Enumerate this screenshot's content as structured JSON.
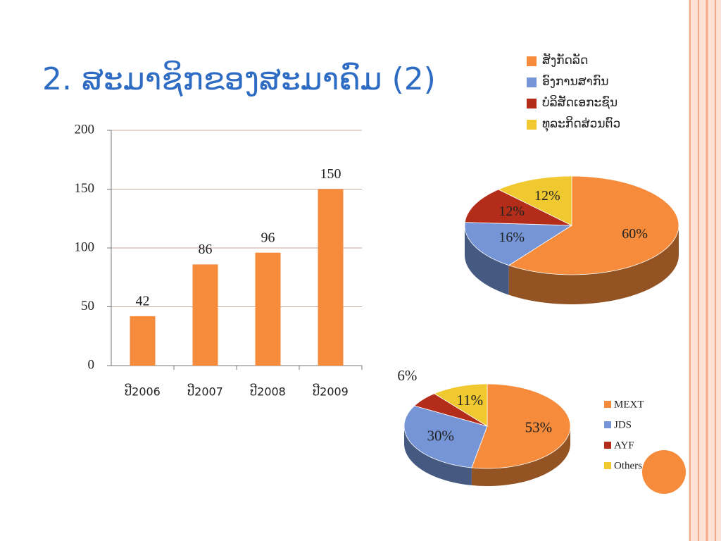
{
  "title": "2. ສະມາຊິກຂອງສະມາຄົມ (2)",
  "chart_data": [
    {
      "type": "bar",
      "categories": [
        "ປີ2006",
        "ປີ2007",
        "ປີ2008",
        "ປີ2009"
      ],
      "values": [
        42,
        86,
        96,
        150
      ],
      "color": "#f58b3b",
      "ylim": [
        0,
        200
      ],
      "yticks": [
        0,
        50,
        100,
        150,
        200
      ],
      "grid": true
    },
    {
      "type": "pie",
      "categories": [
        "ສັງກັດລັດ",
        "ອົງການສາກົນ",
        "ບໍລິສັດເອກະຊົນ",
        "ທຸລະກິດສ່ວນຕົວ"
      ],
      "values": [
        60,
        16,
        12,
        12
      ],
      "value_labels": [
        "60%",
        "16%",
        "12%",
        "12%"
      ],
      "colors": [
        "#f58b3b",
        "#7595d6",
        "#b32d1a",
        "#f0c830"
      ],
      "legend": "top"
    },
    {
      "type": "pie",
      "categories": [
        "MEXT",
        "JDS",
        "AYF",
        "Others"
      ],
      "values": [
        53,
        30,
        6,
        11
      ],
      "value_labels": [
        "53%",
        "30%",
        "6%",
        "11%"
      ],
      "colors": [
        "#f58b3b",
        "#7595d6",
        "#b32d1a",
        "#f0c830"
      ],
      "legend": "right"
    }
  ]
}
